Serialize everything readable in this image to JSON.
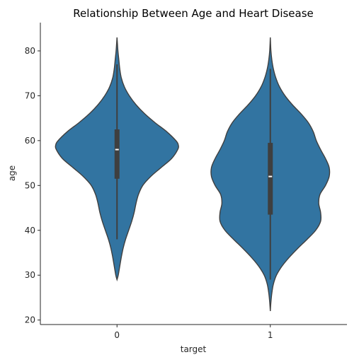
{
  "chart_data": {
    "type": "violin",
    "title": "Relationship Between Age and Heart Disease",
    "xlabel": "target",
    "ylabel": "age",
    "categories": [
      "0",
      "1"
    ],
    "yticks": [
      "20",
      "30",
      "40",
      "50",
      "60",
      "70",
      "80"
    ],
    "ylim": [
      19,
      86.3
    ],
    "grid": false,
    "colors": {
      "violin_fill": "#3274a1",
      "violin_edge": "#3f3f3f",
      "box": "#3f3f3f",
      "median": "#ffffff"
    },
    "violins": [
      {
        "category": "0",
        "summary": {
          "min": 38,
          "q1": 51.5,
          "median": 58,
          "q3": 62.5,
          "max": 77
        },
        "density_profile": [
          [
            29,
            0.0
          ],
          [
            30,
            0.02
          ],
          [
            32,
            0.045
          ],
          [
            34,
            0.07
          ],
          [
            36,
            0.1
          ],
          [
            38,
            0.14
          ],
          [
            40,
            0.19
          ],
          [
            42,
            0.24
          ],
          [
            44,
            0.28
          ],
          [
            46,
            0.31
          ],
          [
            48,
            0.35
          ],
          [
            50,
            0.42
          ],
          [
            52,
            0.55
          ],
          [
            54,
            0.72
          ],
          [
            56,
            0.89
          ],
          [
            58,
            0.99
          ],
          [
            59,
            1.0
          ],
          [
            60,
            0.96
          ],
          [
            62,
            0.81
          ],
          [
            64,
            0.62
          ],
          [
            66,
            0.45
          ],
          [
            68,
            0.31
          ],
          [
            70,
            0.2
          ],
          [
            72,
            0.12
          ],
          [
            74,
            0.07
          ],
          [
            76,
            0.045
          ],
          [
            78,
            0.03
          ],
          [
            80,
            0.015
          ],
          [
            82,
            0.005
          ],
          [
            83,
            0.0
          ]
        ]
      },
      {
        "category": "1",
        "summary": {
          "min": 29,
          "q1": 43.5,
          "median": 52,
          "q3": 59.5,
          "max": 76
        },
        "density_profile": [
          [
            22,
            0.0
          ],
          [
            24,
            0.01
          ],
          [
            26,
            0.025
          ],
          [
            28,
            0.05
          ],
          [
            30,
            0.1
          ],
          [
            32,
            0.19
          ],
          [
            34,
            0.31
          ],
          [
            36,
            0.45
          ],
          [
            38,
            0.6
          ],
          [
            40,
            0.74
          ],
          [
            42,
            0.82
          ],
          [
            44,
            0.82
          ],
          [
            46,
            0.79
          ],
          [
            48,
            0.81
          ],
          [
            50,
            0.9
          ],
          [
            52,
            0.96
          ],
          [
            54,
            0.96
          ],
          [
            56,
            0.9
          ],
          [
            58,
            0.82
          ],
          [
            60,
            0.75
          ],
          [
            62,
            0.7
          ],
          [
            64,
            0.62
          ],
          [
            66,
            0.5
          ],
          [
            68,
            0.36
          ],
          [
            70,
            0.24
          ],
          [
            72,
            0.15
          ],
          [
            74,
            0.09
          ],
          [
            76,
            0.05
          ],
          [
            78,
            0.025
          ],
          [
            80,
            0.01
          ],
          [
            83,
            0.0
          ]
        ]
      }
    ]
  }
}
